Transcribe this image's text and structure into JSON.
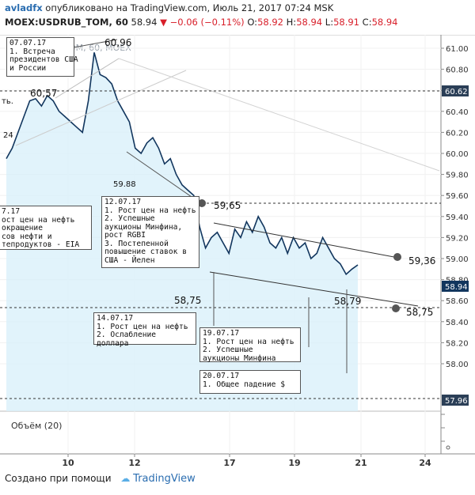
{
  "header": {
    "author": "avladfx",
    "published_text": "опубликовано на TradingView.com, Июль 21, 2017 07:24 MSK",
    "symbol": "MOEX:USDRUB_TOM, 60",
    "last": "58.94",
    "change": "−0.06 (−0.11%)",
    "ohlc": {
      "o_label": "O:",
      "o": "58.92",
      "h_label": "H:",
      "h": "58.94",
      "l_label": "L:",
      "l": "58.91",
      "c_label": "C:",
      "c": "58.94"
    }
  },
  "watermark": "USDRUB TOM, 60, MOEX",
  "price_scale": {
    "ticks": [
      "61.00",
      "60.80",
      "60.60",
      "60.40",
      "60.20",
      "60.00",
      "59.80",
      "59.60",
      "59.40",
      "59.20",
      "59.00",
      "58.80",
      "58.60",
      "58.40",
      "58.20",
      "58.00"
    ],
    "marker_upper": "60.62",
    "marker_last": "58.94",
    "marker_lower": "57.96"
  },
  "time_scale": {
    "ticks": [
      "10",
      "12",
      "17",
      "19",
      "21",
      "24"
    ]
  },
  "volume": {
    "label": "Объём (20)"
  },
  "labels": {
    "high_peak": "60,96",
    "p6057": "60,57",
    "p5988": "59.88",
    "p5965": "59,65",
    "p5936": "59,36",
    "p5875a": "58,75",
    "p5879": "58,79",
    "p5875b": "58,75",
    "edge_tb": "ть.",
    "edge_24": "24"
  },
  "notes": {
    "n0707": "07.07.17\n1. Встреча\nпрезидентов США\nи России",
    "n_left": "7.17\nост цен на нефть\nокращение\nсов нефти и\nтепродуктов - EIA",
    "n1207": "12.07.17\n1. Рост цен на нефть\n2. Успешные\nаукционы Минфина,\nрост RGBI\n3. Постепенной\nповышение ставок в\nСША - Йелен",
    "n1407": "14.07.17\n1. Рост цен на нефть\n2. Ослабление\nдоллара",
    "n1907": "19.07.17\n1. Рост цен на нефть\n2. Успешные\nаукционы Минфина",
    "n2007": "20.07.17\n1. Общее падение $"
  },
  "chart_data": {
    "type": "area",
    "title": "",
    "series": [
      {
        "name": "USDRUB_TOM",
        "values": [
          59.95,
          60.05,
          60.2,
          60.35,
          60.5,
          60.52,
          60.45,
          60.55,
          60.5,
          60.4,
          60.35,
          60.3,
          60.25,
          60.2,
          60.5,
          60.96,
          60.75,
          60.72,
          60.66,
          60.5,
          60.4,
          60.3,
          60.05,
          60.0,
          60.1,
          60.15,
          60.05,
          59.9,
          59.95,
          59.8,
          59.7,
          59.65,
          59.6,
          59.3,
          59.1,
          59.2,
          59.25,
          59.15,
          59.05,
          59.28,
          59.2,
          59.35,
          59.25,
          59.4,
          59.3,
          59.15,
          59.1,
          59.2,
          59.05,
          59.2,
          59.1,
          59.15,
          59.0,
          59.05,
          59.2,
          59.1,
          59.0,
          58.95,
          58.85,
          58.9,
          58.94
        ]
      }
    ],
    "x_ticks": [
      "10",
      "12",
      "17",
      "19",
      "21",
      "24"
    ],
    "ylim": [
      57.9,
      61.1
    ],
    "levels": [
      60.62,
      59.65,
      58.75,
      57.96
    ],
    "last": 58.94
  },
  "colors": {
    "line": "#12365e",
    "area": "#d9f0fa",
    "negative": "#d81f2a",
    "marker": "#2b3f57",
    "accent": "#2a6db0"
  }
}
